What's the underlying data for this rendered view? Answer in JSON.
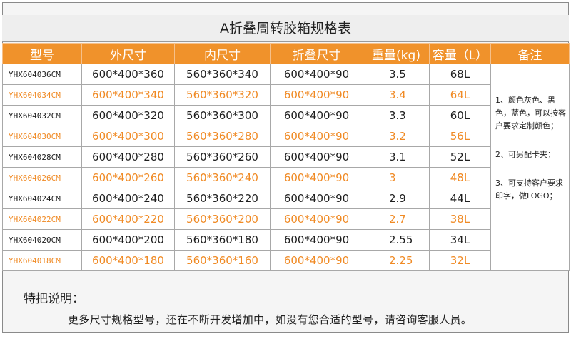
{
  "title": "A折叠周转胶箱规格表",
  "columns": [
    "型号",
    "外尺寸",
    "内尺寸",
    "折叠尺寸",
    "重量(kg)",
    "容量（L）",
    "备注"
  ],
  "rows": [
    {
      "model": "YHX604036CM",
      "outer": "600*400*360",
      "inner": "560*360*340",
      "folded": "600*400*90",
      "weight": "3.5",
      "capacity": "68L"
    },
    {
      "model": "YHX604034CM",
      "outer": "600*400*340",
      "inner": "560*360*320",
      "folded": "600*400*90",
      "weight": "3.4",
      "capacity": "64L"
    },
    {
      "model": "YHX604032CM",
      "outer": "600*400*320",
      "inner": "560*360*300",
      "folded": "600*400*90",
      "weight": "3.3",
      "capacity": "60L"
    },
    {
      "model": "YHX604030CM",
      "outer": "600*400*300",
      "inner": "560*360*280",
      "folded": "600*400*90",
      "weight": "3.2",
      "capacity": "56L"
    },
    {
      "model": "YHX604028CM",
      "outer": "600*400*280",
      "inner": "560*360*260",
      "folded": "600*400*90",
      "weight": "3.1",
      "capacity": "52L"
    },
    {
      "model": "YHX604026CM",
      "outer": "600*400*260",
      "inner": "560*360*240",
      "folded": "600*400*90",
      "weight": "3",
      "capacity": "48L"
    },
    {
      "model": "YHX604024CM",
      "outer": "600*400*240",
      "inner": "560*360*220",
      "folded": "600*400*90",
      "weight": "2.9",
      "capacity": "44L"
    },
    {
      "model": "YHX604022CM",
      "outer": "600*400*220",
      "inner": "560*360*200",
      "folded": "600*400*90",
      "weight": "2.7",
      "capacity": "38L"
    },
    {
      "model": "YHX604020CM",
      "outer": "600*400*200",
      "inner": "560*360*180",
      "folded": "600*400*90",
      "weight": "2.55",
      "capacity": "34L"
    },
    {
      "model": "YHX604018CM",
      "outer": "600*400*180",
      "inner": "560*360*160",
      "folded": "600*400*90",
      "weight": "2.25",
      "capacity": "32L"
    }
  ],
  "notes": [
    "1、颜色灰色、黑色，蓝色，可以按客户要求定制颜色；",
    "2、可另配卡夹；",
    "3、可支持客户要求印字，做LOGO；"
  ],
  "footer": {
    "heading": "特把说明：",
    "text": "更多尺寸规格型号，还在不断开发增加中，如没有您合适的型号，请咨询客服人员。"
  },
  "colors": {
    "header_bg": "#f0922b",
    "alt_text": "#f08a24",
    "text": "#1e1e1e"
  }
}
